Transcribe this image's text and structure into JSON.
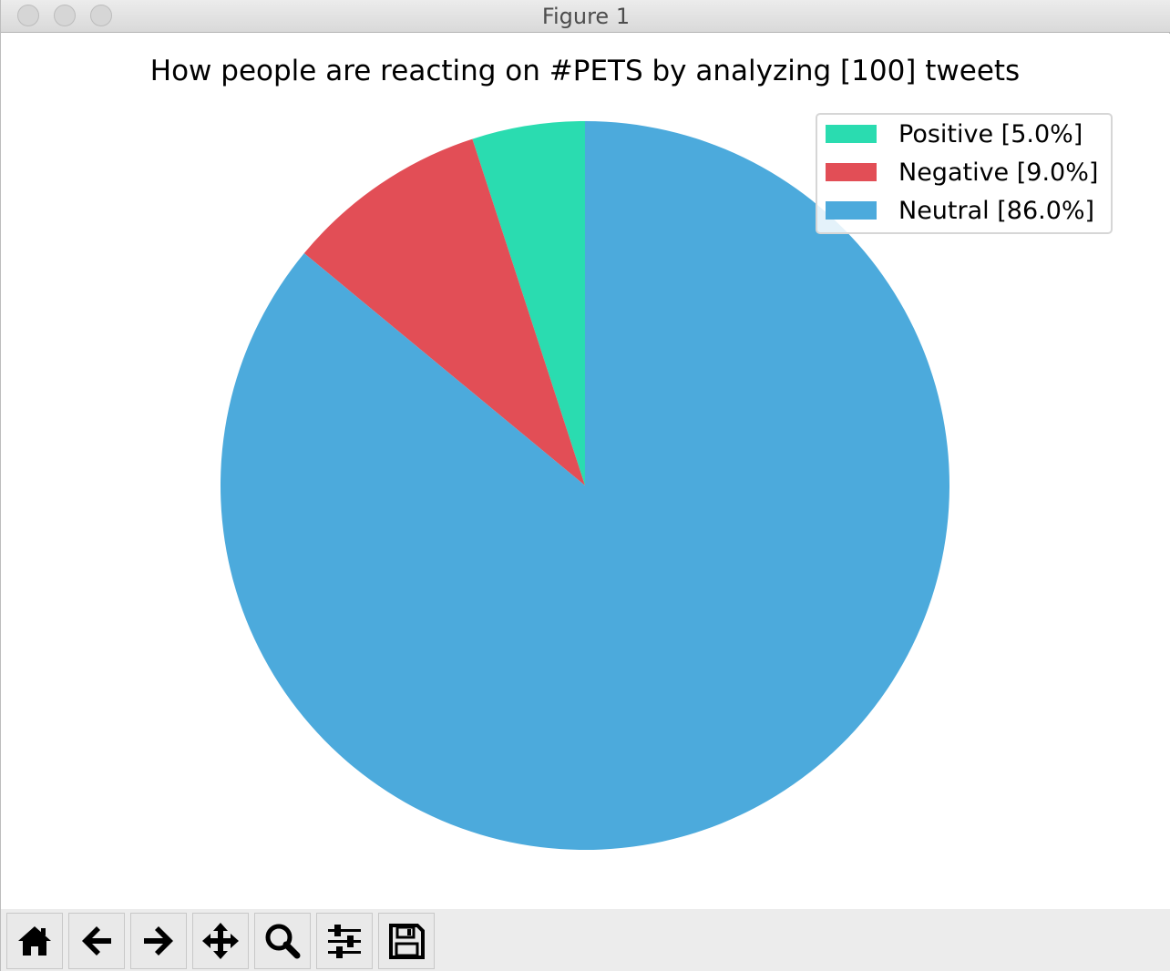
{
  "window": {
    "title": "Figure 1"
  },
  "chart_data": {
    "type": "pie",
    "title": "How people are reacting on #PETS by analyzing [100] tweets",
    "categories": [
      "Positive [5.0%]",
      "Negative [9.0%]",
      "Neutral [86.0%]"
    ],
    "values": [
      5.0,
      9.0,
      86.0
    ],
    "colors": [
      "#2adcb0",
      "#e24e56",
      "#4caadc"
    ],
    "start_angle_deg": 90,
    "direction": "counterclockwise",
    "legend_position": "top-right"
  },
  "toolbar": {
    "buttons": [
      {
        "name": "home-button",
        "icon": "home-icon"
      },
      {
        "name": "back-button",
        "icon": "arrow-left-icon"
      },
      {
        "name": "forward-button",
        "icon": "arrow-right-icon"
      },
      {
        "name": "pan-button",
        "icon": "move-arrows-icon"
      },
      {
        "name": "zoom-button",
        "icon": "magnifier-icon"
      },
      {
        "name": "configure-subplots-button",
        "icon": "sliders-icon"
      },
      {
        "name": "save-button",
        "icon": "floppy-disk-icon"
      }
    ]
  }
}
